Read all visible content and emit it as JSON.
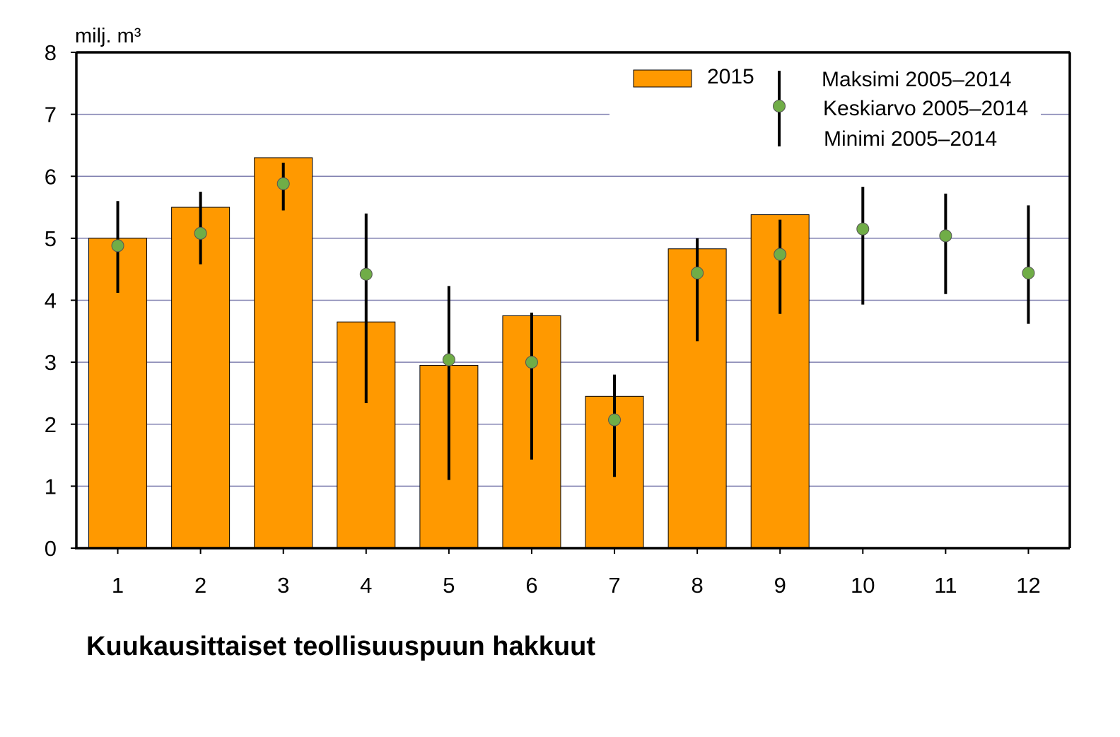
{
  "chart_data": {
    "type": "bar",
    "title": "Kuukausittaiset teollisuuspuun hakkuut",
    "ylabel": "milj. m³",
    "xlabel": "",
    "ylim": [
      0,
      8
    ],
    "yticks": [
      "0",
      "1",
      "2",
      "3",
      "4",
      "5",
      "6",
      "7",
      "8"
    ],
    "categories": [
      "1",
      "2",
      "3",
      "4",
      "5",
      "6",
      "7",
      "8",
      "9",
      "10",
      "11",
      "12"
    ],
    "grid": true,
    "legend_position": "top-right",
    "series": [
      {
        "name": "2015",
        "kind": "bar",
        "color": "#ff9900",
        "values": [
          5.0,
          5.5,
          6.3,
          3.65,
          2.95,
          3.75,
          2.45,
          4.83,
          5.38,
          null,
          null,
          null
        ]
      },
      {
        "name": "Keskiarvo 2005–2014",
        "kind": "point",
        "color": "#70ad47",
        "values": [
          4.88,
          5.08,
          5.88,
          4.42,
          3.04,
          3.0,
          2.07,
          4.44,
          4.74,
          5.15,
          5.04,
          4.44
        ]
      },
      {
        "name": "Maksimi 2005–2014",
        "kind": "errorbar-max",
        "values": [
          5.6,
          5.75,
          6.22,
          5.4,
          4.23,
          3.8,
          2.8,
          5.0,
          5.3,
          5.83,
          5.72,
          5.53
        ]
      },
      {
        "name": "Minimi 2005–2014",
        "kind": "errorbar-min",
        "values": [
          4.12,
          4.58,
          5.45,
          2.34,
          1.1,
          1.43,
          1.15,
          3.34,
          3.78,
          3.93,
          4.1,
          3.62
        ]
      }
    ]
  }
}
